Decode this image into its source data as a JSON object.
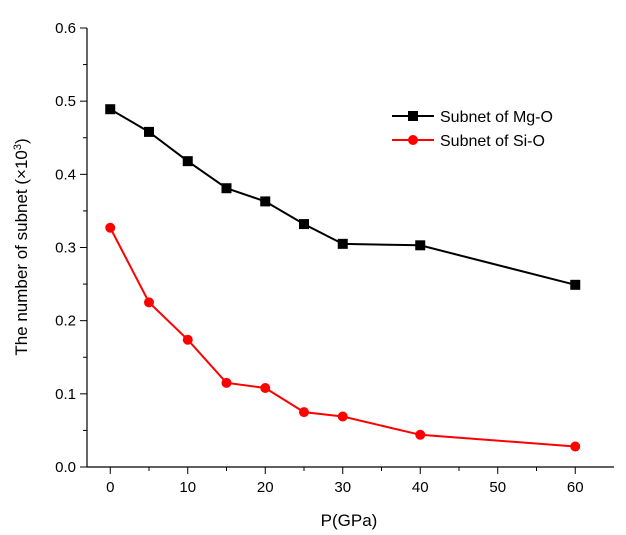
{
  "chart_data": {
    "type": "line",
    "title": "",
    "xlabel": "P(GPa)",
    "ylabel": {
      "text": "The number of subnet (×10",
      "superscript": "3",
      "suffix": ")"
    },
    "xlim": [
      -3,
      65
    ],
    "ylim": [
      0,
      0.6
    ],
    "xticks": [
      0,
      10,
      20,
      30,
      40,
      50,
      60
    ],
    "xtick_labels": [
      "0",
      "10",
      "20",
      "30",
      "40",
      "50",
      "60"
    ],
    "yticks": [
      0.0,
      0.1,
      0.2,
      0.3,
      0.4,
      0.5,
      0.6
    ],
    "ytick_labels": [
      "0.0",
      "0.1",
      "0.2",
      "0.3",
      "0.4",
      "0.5",
      "0.6"
    ],
    "grid": false,
    "legend_position": "top-right",
    "series": [
      {
        "name": "Subnet of Mg-O",
        "color": "#000000",
        "marker": "square",
        "x": [
          0,
          5,
          10,
          15,
          20,
          25,
          30,
          40,
          60
        ],
        "y": [
          0.489,
          0.458,
          0.418,
          0.381,
          0.363,
          0.332,
          0.305,
          0.303,
          0.249
        ]
      },
      {
        "name": "Subnet of Si-O",
        "color": "#ff0000",
        "marker": "circle",
        "x": [
          0,
          5,
          10,
          15,
          20,
          25,
          30,
          40,
          60
        ],
        "y": [
          0.327,
          0.225,
          0.174,
          0.115,
          0.108,
          0.075,
          0.069,
          0.044,
          0.028
        ]
      }
    ]
  }
}
